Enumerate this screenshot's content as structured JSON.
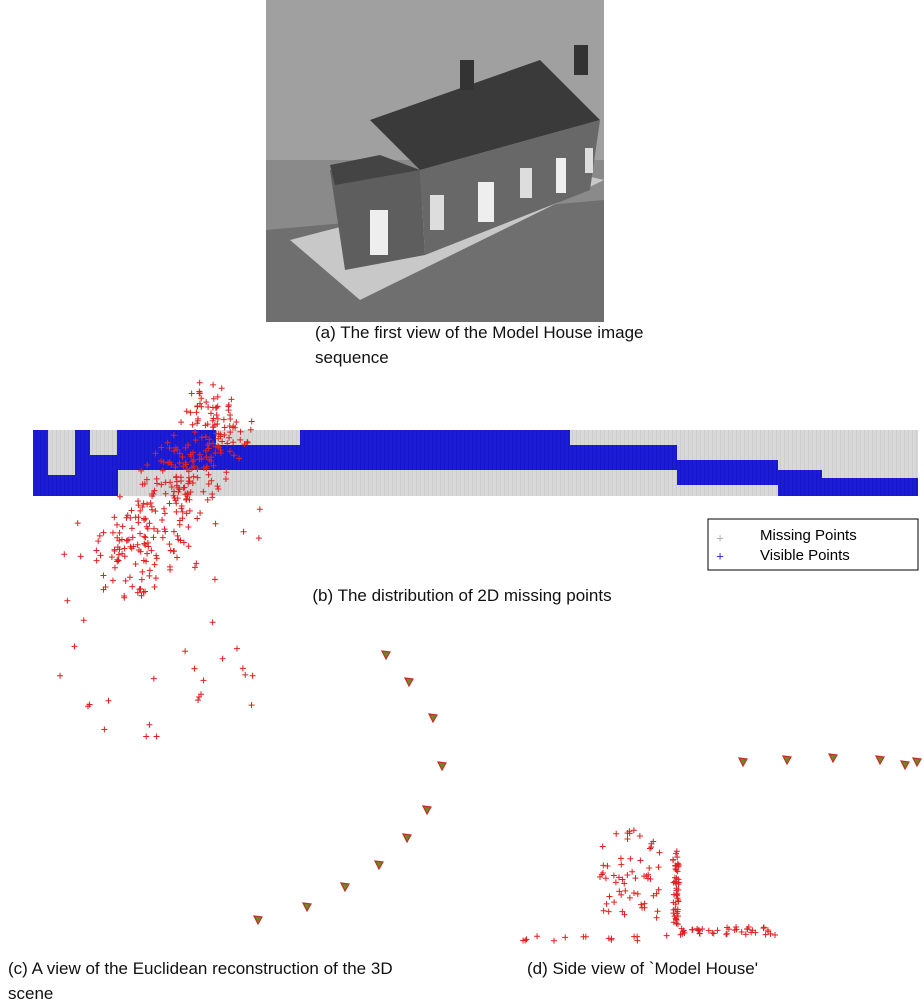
{
  "figures": [
    {
      "caption": "(a) The first view of the Model House image sequence"
    },
    {
      "caption": "(b) The distribution of 2D missing points",
      "legend": [
        "Missing Points",
        "Visible Points"
      ]
    },
    {
      "caption": "(c) A view of the Euclidean reconstruction of the 3D scene"
    },
    {
      "caption": "(d) Side view of `Model House'"
    }
  ]
}
